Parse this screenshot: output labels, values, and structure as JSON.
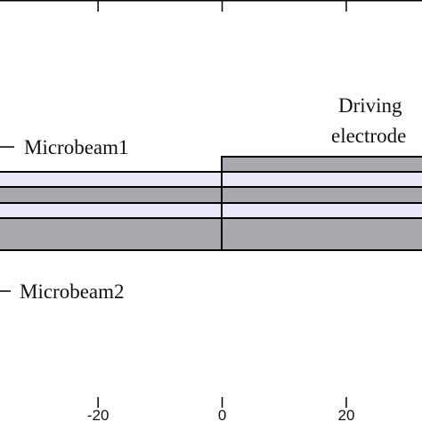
{
  "axis": {
    "xlim": [
      -35.8,
      32.2
    ],
    "xticks": [
      -20,
      0,
      20
    ]
  },
  "labels": {
    "microbeam1": "Microbeam1",
    "microbeam2": "Microbeam2",
    "driving": "Driving",
    "electrode": "electrode"
  }
}
